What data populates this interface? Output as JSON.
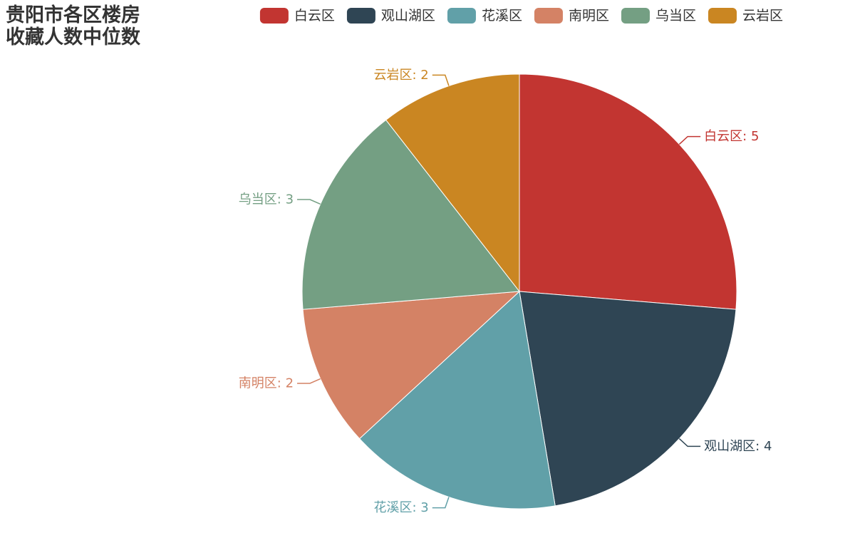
{
  "chart_data": {
    "type": "pie",
    "title": "贵阳市各区楼房收藏人数中位数",
    "title_lines": [
      "贵阳市各区楼房",
      "收藏人数中位数"
    ],
    "legend_position": "top-right",
    "label_separator": ": ",
    "series": [
      {
        "categories": [
          "白云区",
          "观山湖区",
          "花溪区",
          "南明区",
          "乌当区",
          "云岩区"
        ],
        "values": [
          5,
          4,
          3,
          2,
          3,
          2
        ],
        "colors": [
          "#c23531",
          "#2f4554",
          "#61a0a8",
          "#d48265",
          "#749f83",
          "#ca8622"
        ]
      }
    ]
  }
}
